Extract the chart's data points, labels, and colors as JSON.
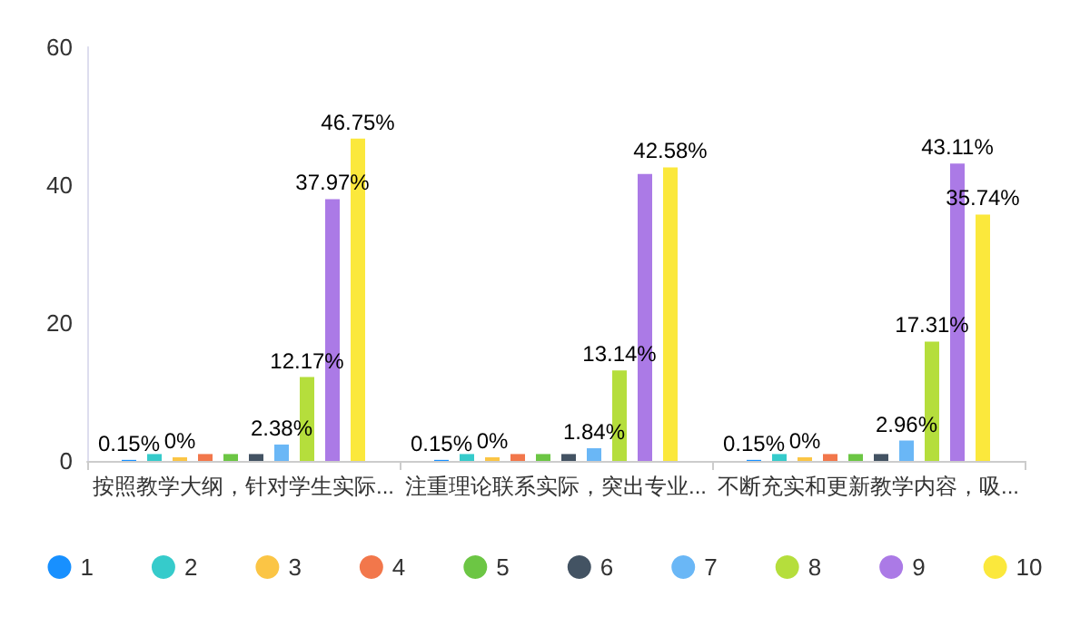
{
  "chart_data": {
    "type": "bar",
    "categories": [
      "按照教学大纲，针对学生实际...",
      "注重理论联系实际，突出专业...",
      "不断充实和更新教学内容，吸..."
    ],
    "ylim": [
      0,
      60
    ],
    "yticks": [
      0,
      20,
      40,
      60
    ],
    "grid": false,
    "legend": "bottom",
    "marker": "circle",
    "series": [
      {
        "name": "1",
        "color": "#1890ff",
        "values": [
          0.15,
          0.15,
          0.15
        ],
        "value_labels": [
          "0.15%",
          "0.15%",
          "0.15%"
        ]
      },
      {
        "name": "2",
        "color": "#36cbcb",
        "values": [
          1,
          1,
          1
        ],
        "value_labels": [
          null,
          null,
          null
        ]
      },
      {
        "name": "3",
        "color": "#fbc545",
        "values": [
          0,
          0,
          0
        ],
        "value_labels": [
          "0%",
          "0%",
          "0%"
        ]
      },
      {
        "name": "4",
        "color": "#f2774b",
        "values": [
          1,
          1,
          1
        ],
        "value_labels": [
          null,
          null,
          null
        ]
      },
      {
        "name": "5",
        "color": "#6cc644",
        "values": [
          1,
          1,
          1
        ],
        "value_labels": [
          null,
          null,
          null
        ]
      },
      {
        "name": "6",
        "color": "#435363",
        "values": [
          1,
          1,
          1
        ],
        "value_labels": [
          null,
          null,
          null
        ]
      },
      {
        "name": "7",
        "color": "#6ab7f6",
        "values": [
          2.38,
          1.84,
          2.96
        ],
        "value_labels": [
          "2.38%",
          "1.84%",
          "2.96%"
        ]
      },
      {
        "name": "8",
        "color": "#b5de3c",
        "values": [
          12.17,
          13.14,
          17.31
        ],
        "value_labels": [
          "12.17%",
          "13.14%",
          "17.31%"
        ]
      },
      {
        "name": "9",
        "color": "#ab7ae6",
        "values": [
          37.97,
          41.6,
          43.11
        ],
        "value_labels": [
          "37.97%",
          null,
          "43.11%"
        ]
      },
      {
        "name": "10",
        "color": "#fbe83c",
        "values": [
          46.75,
          42.58,
          35.74
        ],
        "value_labels": [
          "46.75%",
          "42.58%",
          "35.74%"
        ]
      }
    ]
  }
}
